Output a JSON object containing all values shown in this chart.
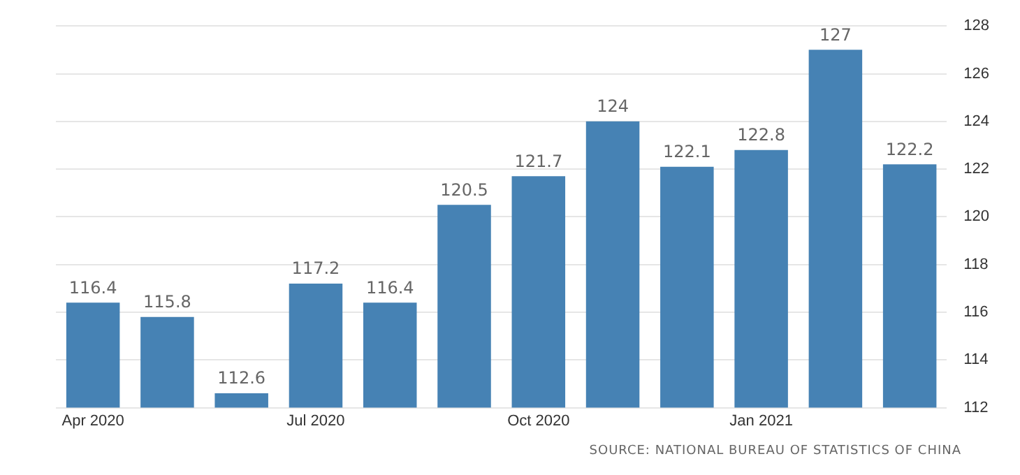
{
  "chart_data": {
    "type": "bar",
    "categories": [
      "Apr 2020",
      null,
      null,
      "Jul 2020",
      null,
      null,
      "Oct 2020",
      null,
      null,
      "Jan 2021",
      null,
      null
    ],
    "values": [
      116.4,
      115.8,
      112.6,
      117.2,
      116.4,
      120.5,
      121.7,
      124,
      122.1,
      122.8,
      127,
      122.2
    ],
    "color": "#4682b4",
    "ylim": [
      112,
      128
    ],
    "yticks": [
      112,
      114,
      116,
      118,
      120,
      122,
      124,
      126,
      128
    ],
    "grid": "y",
    "data_labels": true,
    "annotations": [
      "SOURCE: NATIONAL BUREAU OF STATISTICS OF CHINA"
    ]
  }
}
